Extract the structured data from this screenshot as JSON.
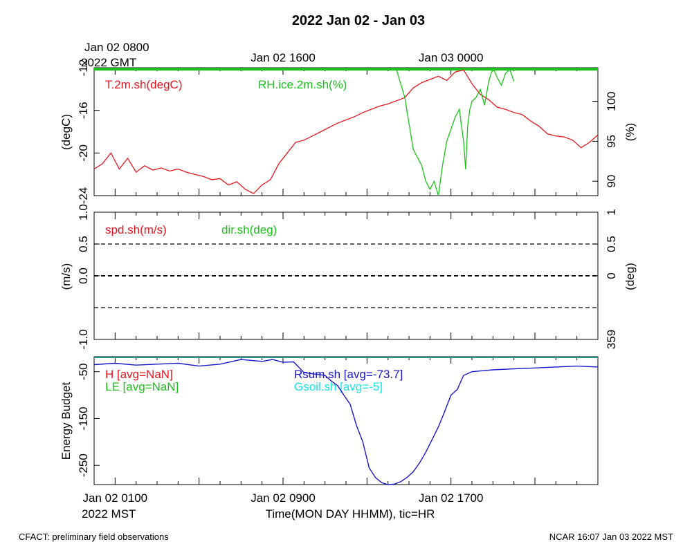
{
  "title": "2022 Jan 02 - Jan 03",
  "footer_left": "CFACT: preliminary field observations",
  "footer_right": "NCAR 16:07 Jan 03 2022 MST",
  "top_axis": {
    "zone_line1": "Jan 02 0800",
    "zone_line2": "2022 GMT",
    "ticks": [
      {
        "label": "Jan 02 1600",
        "hour": 8
      },
      {
        "label": "Jan 03 0000",
        "hour": 16
      }
    ]
  },
  "bottom_axis": {
    "xlabel": "Time(MON DAY HHMM), tic=HR",
    "zone_label": "2022 MST",
    "ticks": [
      {
        "label": "Jan 02 0100",
        "hour": 0
      },
      {
        "label": "Jan 02 0900",
        "hour": 8
      },
      {
        "label": "Jan 02 1700",
        "hour": 16
      }
    ]
  },
  "colors": {
    "red": "#e8141c",
    "green": "#19c319",
    "blue": "#1717c8",
    "cyan": "#19e6e6",
    "teal": "#1c9a8c"
  },
  "chart_data": [
    {
      "type": "line",
      "panel": "temperature-rh",
      "xlim": [
        -1,
        23
      ],
      "ylabel": "(degC)",
      "ylim": [
        -24,
        -12
      ],
      "yticks": [
        "-24",
        "-20",
        "-16",
        "-12"
      ],
      "y2label": "(%)",
      "y2lim": [
        88.2,
        104.2
      ],
      "y2ticks": [
        "90",
        "95",
        "100"
      ],
      "series": [
        {
          "name": "T.2m.sh(degC)",
          "axis": "left",
          "color": "#e8141c",
          "x": [
            -1.0,
            -0.6,
            -0.2,
            0.2,
            0.6,
            1.0,
            1.4,
            1.8,
            2.2,
            2.6,
            3.0,
            3.4,
            3.8,
            4.2,
            4.6,
            5.0,
            5.4,
            5.8,
            6.2,
            6.6,
            7.0,
            7.4,
            7.8,
            8.2,
            8.6,
            9.0,
            9.4,
            9.8,
            10.2,
            10.6,
            11.0,
            11.4,
            11.8,
            12.2,
            12.6,
            13.0,
            13.4,
            13.8,
            14.2,
            14.6,
            15.0,
            15.4,
            15.8,
            16.2,
            16.6,
            17.0,
            17.4,
            17.8,
            18.2,
            18.6,
            19.0,
            19.4,
            19.8,
            20.2,
            20.6,
            21.0,
            21.4,
            21.8,
            22.2,
            22.6,
            23.0
          ],
          "y": [
            -21.5,
            -21.0,
            -20.0,
            -21.5,
            -20.5,
            -21.8,
            -21.2,
            -21.6,
            -21.4,
            -21.7,
            -21.5,
            -21.8,
            -22.0,
            -22.2,
            -22.5,
            -22.4,
            -23.0,
            -22.7,
            -23.4,
            -23.8,
            -23.0,
            -22.5,
            -21.0,
            -20.0,
            -19.0,
            -18.8,
            -18.4,
            -18.0,
            -17.6,
            -17.2,
            -16.9,
            -16.6,
            -16.2,
            -15.9,
            -15.6,
            -15.4,
            -15.1,
            -14.8,
            -13.9,
            -13.4,
            -13.1,
            -12.8,
            -13.2,
            -12.4,
            -12.2,
            -13.5,
            -14.5,
            -15.0,
            -15.7,
            -15.9,
            -16.2,
            -16.4,
            -17.0,
            -17.5,
            -18.2,
            -18.4,
            -18.5,
            -18.8,
            -19.5,
            -19.0,
            -18.3
          ]
        },
        {
          "name": "RH.ice.2m.sh(%)",
          "axis": "right",
          "color": "#19c319",
          "x": [
            13.4,
            13.8,
            14.2,
            14.6,
            14.8,
            15.0,
            15.2,
            15.4,
            15.6,
            15.8,
            16.0,
            16.2,
            16.4,
            16.6,
            16.7,
            16.8,
            16.9,
            17.0,
            17.2,
            17.4,
            17.6,
            17.8,
            18.0,
            18.2,
            18.4,
            18.6,
            18.8,
            19.0
          ],
          "y": [
            104.0,
            100.5,
            94.0,
            92.0,
            90.0,
            89.0,
            90.0,
            88.2,
            92.0,
            95.0,
            96.5,
            98.0,
            99.0,
            95.0,
            91.5,
            97.0,
            99.0,
            100.0,
            100.5,
            101.5,
            99.5,
            102.5,
            104.2,
            103.0,
            102.0,
            103.5,
            104.0,
            102.5
          ]
        }
      ]
    },
    {
      "type": "line",
      "panel": "wind",
      "xlim": [
        -1,
        23
      ],
      "ylabel": "(m/s)",
      "ylim": [
        -1.0,
        1.0
      ],
      "yticks": [
        "-1.0",
        "0.0",
        "0.5",
        "1.0"
      ],
      "y2label": "(deg)",
      "y2ticks": [
        "359",
        "0",
        "0.5",
        "1"
      ],
      "reference_lines": [
        0.5,
        0.0,
        -0.5
      ],
      "series": [
        {
          "name": "spd.sh(m/s)",
          "color": "#e8141c",
          "x": [],
          "y": []
        },
        {
          "name": "dir.sh(deg)",
          "color": "#19c319",
          "x": [],
          "y": []
        }
      ]
    },
    {
      "type": "line",
      "panel": "energy-budget",
      "xlim": [
        -1,
        23
      ],
      "ylabel": "Energy Budget",
      "ylim": [
        -291,
        -18
      ],
      "yticks": [
        "-250",
        "-150",
        "-50"
      ],
      "series": [
        {
          "name": "H [avg=NaN]",
          "color": "#e8141c",
          "x": [],
          "y": []
        },
        {
          "name": "LE [avg=NaN]",
          "color": "#19c319",
          "x": [],
          "y": []
        },
        {
          "name": "Rsum.sh [avg=-73.7]",
          "color": "#1717c8",
          "x": [
            -1.0,
            0.0,
            1.0,
            2.0,
            3.0,
            4.0,
            5.0,
            6.0,
            7.0,
            7.5,
            8.0,
            8.5,
            9.0,
            9.5,
            10.0,
            10.3,
            10.6,
            10.9,
            11.2,
            11.5,
            11.8,
            12.1,
            12.4,
            12.7,
            13.0,
            13.3,
            13.6,
            13.9,
            14.2,
            14.5,
            14.8,
            15.1,
            15.4,
            15.7,
            16.0,
            16.3,
            16.6,
            17.0,
            17.5,
            18.0,
            19.0,
            20.0,
            21.0,
            22.0,
            23.0
          ],
          "y": [
            -35,
            -32,
            -36,
            -34,
            -32,
            -38,
            -34,
            -24,
            -28,
            -24,
            -30,
            -29,
            -52,
            -55,
            -58,
            -70,
            -80,
            -100,
            -120,
            -165,
            -200,
            -255,
            -276,
            -287,
            -291,
            -290,
            -285,
            -276,
            -264,
            -245,
            -222,
            -195,
            -168,
            -135,
            -100,
            -88,
            -58,
            -50,
            -48,
            -46,
            -44,
            -42,
            -40,
            -38,
            -40
          ]
        },
        {
          "name": "Gsoil.sh [avg=-5]",
          "color": "#19e6e6",
          "x": [],
          "y": []
        }
      ]
    }
  ]
}
